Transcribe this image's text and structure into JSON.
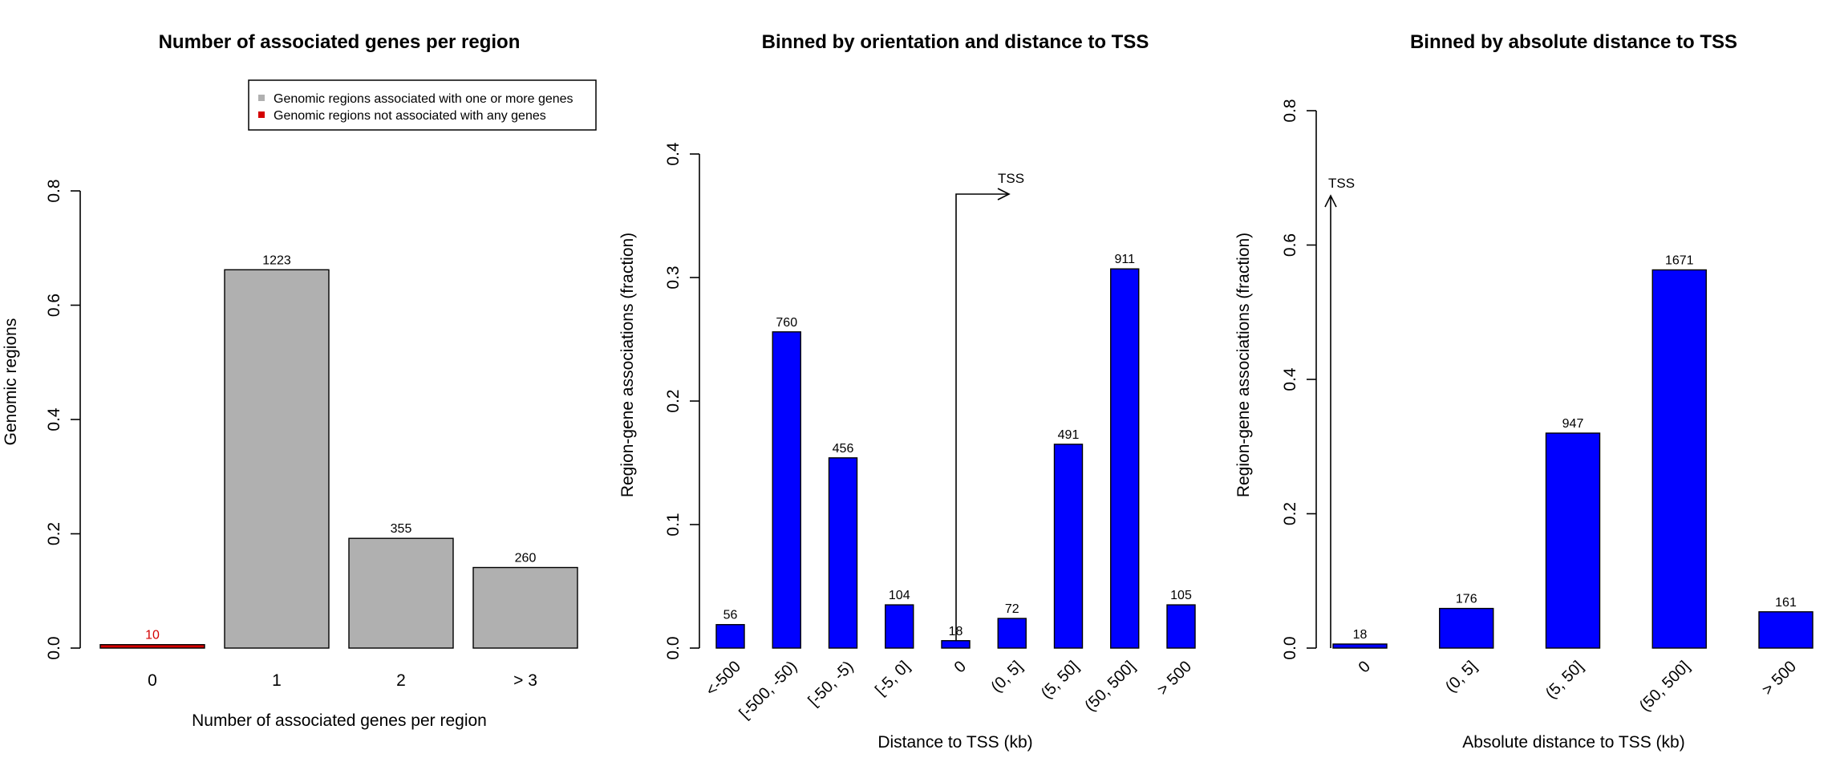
{
  "chart_data": [
    {
      "type": "bar",
      "title": "Number of associated genes per region",
      "xlabel": "Number of associated genes per region",
      "ylabel": "Genomic regions",
      "categories": [
        "0",
        "1",
        "2",
        "> 3"
      ],
      "values": [
        0.006,
        0.662,
        0.192,
        0.141
      ],
      "data_labels": [
        "10",
        "1223",
        "355",
        "260"
      ],
      "bar_colors": [
        "#d40000",
        "#b0b0b0",
        "#b0b0b0",
        "#b0b0b0"
      ],
      "label_colors": [
        "#d40000",
        "#000000",
        "#000000",
        "#000000"
      ],
      "ylim": [
        0,
        0.8
      ],
      "yticks": [
        "0.0",
        "0.2",
        "0.4",
        "0.6",
        "0.8"
      ],
      "legend": {
        "placement": "top-right",
        "entries": [
          {
            "label": "Genomic regions associated with one or more genes",
            "color": "#b0b0b0"
          },
          {
            "label": "Genomic regions not associated with any genes",
            "color": "#d40000"
          }
        ]
      },
      "grid": false
    },
    {
      "type": "bar",
      "title": "Binned by orientation and distance to TSS",
      "xlabel": "Distance to TSS (kb)",
      "ylabel": "Region-gene associations (fraction)",
      "categories": [
        "<-500",
        "[-500, -50)",
        "[-50, -5)",
        "[-5, 0]",
        "0",
        "(0, 5]",
        "(5, 50]",
        "(50, 500]",
        "> 500"
      ],
      "values": [
        0.019,
        0.256,
        0.154,
        0.035,
        0.006,
        0.024,
        0.165,
        0.307,
        0.035
      ],
      "data_labels": [
        "56",
        "760",
        "456",
        "104",
        "18",
        "72",
        "491",
        "911",
        "105"
      ],
      "bar_color": "#0000ff",
      "ylim": [
        0,
        0.4
      ],
      "yticks": [
        "0.0",
        "0.1",
        "0.2",
        "0.3",
        "0.4"
      ],
      "annotation": "TSS",
      "grid": false
    },
    {
      "type": "bar",
      "title": "Binned by absolute distance to TSS",
      "xlabel": "Absolute distance to TSS (kb)",
      "ylabel": "Region-gene associations (fraction)",
      "categories": [
        "0",
        "(0, 5]",
        "(5, 50]",
        "(50, 500]",
        "> 500"
      ],
      "values": [
        0.006,
        0.059,
        0.32,
        0.563,
        0.054
      ],
      "data_labels": [
        "18",
        "176",
        "947",
        "1671",
        "161"
      ],
      "bar_color": "#0000ff",
      "ylim": [
        0,
        0.8
      ],
      "yticks": [
        "0.0",
        "0.2",
        "0.4",
        "0.6",
        "0.8"
      ],
      "annotation": "TSS",
      "grid": false
    }
  ]
}
